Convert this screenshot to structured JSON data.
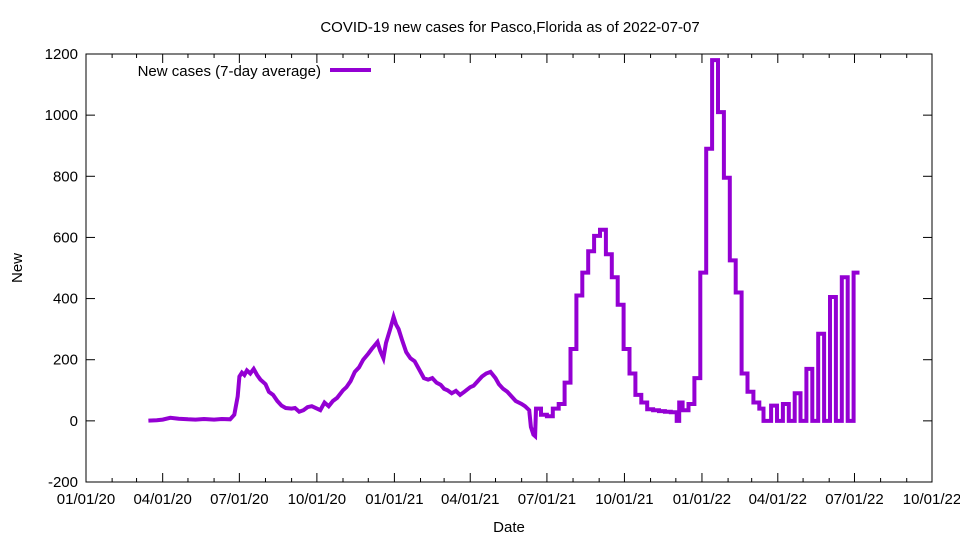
{
  "chart_data": {
    "type": "line",
    "title": "COVID-19 new cases for Pasco,Florida as of 2022-07-07",
    "xlabel": "Date",
    "ylabel": "New",
    "ylim": [
      -200,
      1200
    ],
    "yticks": [
      -200,
      0,
      200,
      400,
      600,
      800,
      1000,
      1200
    ],
    "xlim": [
      "2020-01-01",
      "2022-10-01"
    ],
    "xticks": [
      {
        "date": "2020-01-01",
        "label": "01/01/20"
      },
      {
        "date": "2020-04-01",
        "label": "04/01/20"
      },
      {
        "date": "2020-07-01",
        "label": "07/01/20"
      },
      {
        "date": "2020-10-01",
        "label": "10/01/20"
      },
      {
        "date": "2021-01-01",
        "label": "01/01/21"
      },
      {
        "date": "2021-04-01",
        "label": "04/01/21"
      },
      {
        "date": "2021-07-01",
        "label": "07/01/21"
      },
      {
        "date": "2021-10-01",
        "label": "10/01/21"
      },
      {
        "date": "2022-01-01",
        "label": "01/01/22"
      },
      {
        "date": "2022-04-01",
        "label": "04/01/22"
      },
      {
        "date": "2022-07-01",
        "label": "07/01/22"
      },
      {
        "date": "2022-10-01",
        "label": "10/01/22"
      }
    ],
    "grid": false,
    "legend_position": "top-left",
    "series": [
      {
        "name": "New cases (7-day average)",
        "color": "#9400d3",
        "points": [
          [
            "2020-03-15",
            1
          ],
          [
            "2020-03-25",
            2
          ],
          [
            "2020-04-01",
            4
          ],
          [
            "2020-04-10",
            10
          ],
          [
            "2020-04-20",
            7
          ],
          [
            "2020-05-01",
            5
          ],
          [
            "2020-05-10",
            4
          ],
          [
            "2020-05-20",
            6
          ],
          [
            "2020-06-01",
            4
          ],
          [
            "2020-06-10",
            6
          ],
          [
            "2020-06-20",
            5
          ],
          [
            "2020-06-25",
            20
          ],
          [
            "2020-06-29",
            80
          ],
          [
            "2020-07-01",
            145
          ],
          [
            "2020-07-04",
            158
          ],
          [
            "2020-07-07",
            150
          ],
          [
            "2020-07-10",
            165
          ],
          [
            "2020-07-14",
            155
          ],
          [
            "2020-07-18",
            170
          ],
          [
            "2020-07-22",
            150
          ],
          [
            "2020-07-26",
            135
          ],
          [
            "2020-08-01",
            120
          ],
          [
            "2020-08-05",
            95
          ],
          [
            "2020-08-10",
            85
          ],
          [
            "2020-08-15",
            65
          ],
          [
            "2020-08-20",
            50
          ],
          [
            "2020-08-25",
            42
          ],
          [
            "2020-09-01",
            40
          ],
          [
            "2020-09-05",
            42
          ],
          [
            "2020-09-10",
            30
          ],
          [
            "2020-09-15",
            35
          ],
          [
            "2020-09-20",
            45
          ],
          [
            "2020-09-25",
            48
          ],
          [
            "2020-10-01",
            40
          ],
          [
            "2020-10-05",
            35
          ],
          [
            "2020-10-10",
            60
          ],
          [
            "2020-10-15",
            48
          ],
          [
            "2020-10-20",
            65
          ],
          [
            "2020-10-25",
            75
          ],
          [
            "2020-11-01",
            100
          ],
          [
            "2020-11-05",
            110
          ],
          [
            "2020-11-10",
            130
          ],
          [
            "2020-11-15",
            160
          ],
          [
            "2020-11-20",
            175
          ],
          [
            "2020-11-25",
            200
          ],
          [
            "2020-12-01",
            220
          ],
          [
            "2020-12-05",
            235
          ],
          [
            "2020-12-08",
            245
          ],
          [
            "2020-12-12",
            258
          ],
          [
            "2020-12-15",
            230
          ],
          [
            "2020-12-19",
            205
          ],
          [
            "2020-12-22",
            255
          ],
          [
            "2020-12-27",
            300
          ],
          [
            "2020-12-31",
            340
          ],
          [
            "2021-01-03",
            315
          ],
          [
            "2021-01-06",
            300
          ],
          [
            "2021-01-10",
            265
          ],
          [
            "2021-01-15",
            225
          ],
          [
            "2021-01-20",
            205
          ],
          [
            "2021-01-25",
            195
          ],
          [
            "2021-02-01",
            160
          ],
          [
            "2021-02-05",
            140
          ],
          [
            "2021-02-10",
            135
          ],
          [
            "2021-02-15",
            140
          ],
          [
            "2021-02-20",
            125
          ],
          [
            "2021-02-25",
            118
          ],
          [
            "2021-03-01",
            105
          ],
          [
            "2021-03-05",
            100
          ],
          [
            "2021-03-10",
            90
          ],
          [
            "2021-03-15",
            98
          ],
          [
            "2021-03-20",
            85
          ],
          [
            "2021-03-25",
            95
          ],
          [
            "2021-04-01",
            110
          ],
          [
            "2021-04-05",
            115
          ],
          [
            "2021-04-10",
            130
          ],
          [
            "2021-04-15",
            145
          ],
          [
            "2021-04-20",
            155
          ],
          [
            "2021-04-25",
            160
          ],
          [
            "2021-05-01",
            140
          ],
          [
            "2021-05-05",
            120
          ],
          [
            "2021-05-10",
            105
          ],
          [
            "2021-05-15",
            95
          ],
          [
            "2021-05-20",
            80
          ],
          [
            "2021-05-25",
            65
          ],
          [
            "2021-06-01",
            55
          ],
          [
            "2021-06-05",
            48
          ],
          [
            "2021-06-10",
            35
          ],
          [
            "2021-06-12",
            -20
          ],
          [
            "2021-06-15",
            -45
          ],
          [
            "2021-06-17",
            -50
          ],
          [
            "2021-06-18",
            40
          ],
          [
            "2021-06-24",
            40
          ],
          [
            "2021-06-24",
            20
          ],
          [
            "2021-07-01",
            20
          ],
          [
            "2021-07-01",
            15
          ],
          [
            "2021-07-08",
            15
          ],
          [
            "2021-07-08",
            40
          ],
          [
            "2021-07-15",
            40
          ],
          [
            "2021-07-15",
            55
          ],
          [
            "2021-07-22",
            55
          ],
          [
            "2021-07-22",
            125
          ],
          [
            "2021-07-29",
            125
          ],
          [
            "2021-07-29",
            235
          ],
          [
            "2021-08-05",
            235
          ],
          [
            "2021-08-05",
            410
          ],
          [
            "2021-08-12",
            410
          ],
          [
            "2021-08-12",
            485
          ],
          [
            "2021-08-19",
            485
          ],
          [
            "2021-08-19",
            555
          ],
          [
            "2021-08-26",
            555
          ],
          [
            "2021-08-26",
            605
          ],
          [
            "2021-09-02",
            605
          ],
          [
            "2021-09-02",
            625
          ],
          [
            "2021-09-09",
            625
          ],
          [
            "2021-09-09",
            545
          ],
          [
            "2021-09-16",
            545
          ],
          [
            "2021-09-16",
            470
          ],
          [
            "2021-09-23",
            470
          ],
          [
            "2021-09-23",
            380
          ],
          [
            "2021-09-30",
            380
          ],
          [
            "2021-09-30",
            235
          ],
          [
            "2021-10-07",
            235
          ],
          [
            "2021-10-07",
            155
          ],
          [
            "2021-10-14",
            155
          ],
          [
            "2021-10-14",
            85
          ],
          [
            "2021-10-21",
            85
          ],
          [
            "2021-10-21",
            60
          ],
          [
            "2021-10-28",
            60
          ],
          [
            "2021-10-28",
            38
          ],
          [
            "2021-11-04",
            38
          ],
          [
            "2021-11-04",
            35
          ],
          [
            "2021-11-11",
            35
          ],
          [
            "2021-11-11",
            32
          ],
          [
            "2021-11-18",
            32
          ],
          [
            "2021-11-18",
            30
          ],
          [
            "2021-11-25",
            30
          ],
          [
            "2021-11-25",
            28
          ],
          [
            "2021-12-02",
            28
          ],
          [
            "2021-12-02",
            0
          ],
          [
            "2021-12-05",
            0
          ],
          [
            "2021-12-05",
            60
          ],
          [
            "2021-12-09",
            60
          ],
          [
            "2021-12-09",
            35
          ],
          [
            "2021-12-16",
            35
          ],
          [
            "2021-12-16",
            55
          ],
          [
            "2021-12-23",
            55
          ],
          [
            "2021-12-23",
            140
          ],
          [
            "2021-12-30",
            140
          ],
          [
            "2021-12-30",
            485
          ],
          [
            "2022-01-06",
            485
          ],
          [
            "2022-01-06",
            890
          ],
          [
            "2022-01-13",
            890
          ],
          [
            "2022-01-13",
            1180
          ],
          [
            "2022-01-20",
            1180
          ],
          [
            "2022-01-20",
            1010
          ],
          [
            "2022-01-27",
            1010
          ],
          [
            "2022-01-27",
            795
          ],
          [
            "2022-02-03",
            795
          ],
          [
            "2022-02-03",
            525
          ],
          [
            "2022-02-10",
            525
          ],
          [
            "2022-02-10",
            420
          ],
          [
            "2022-02-17",
            420
          ],
          [
            "2022-02-17",
            155
          ],
          [
            "2022-02-24",
            155
          ],
          [
            "2022-02-24",
            95
          ],
          [
            "2022-03-03",
            95
          ],
          [
            "2022-03-03",
            60
          ],
          [
            "2022-03-10",
            60
          ],
          [
            "2022-03-10",
            40
          ],
          [
            "2022-03-15",
            40
          ],
          [
            "2022-03-15",
            0
          ],
          [
            "2022-03-24",
            0
          ],
          [
            "2022-03-24",
            50
          ],
          [
            "2022-03-31",
            50
          ],
          [
            "2022-03-31",
            0
          ],
          [
            "2022-04-07",
            0
          ],
          [
            "2022-04-07",
            55
          ],
          [
            "2022-04-14",
            55
          ],
          [
            "2022-04-14",
            0
          ],
          [
            "2022-04-21",
            0
          ],
          [
            "2022-04-21",
            90
          ],
          [
            "2022-04-28",
            90
          ],
          [
            "2022-04-28",
            0
          ],
          [
            "2022-05-05",
            0
          ],
          [
            "2022-05-05",
            170
          ],
          [
            "2022-05-12",
            170
          ],
          [
            "2022-05-12",
            0
          ],
          [
            "2022-05-19",
            0
          ],
          [
            "2022-05-19",
            285
          ],
          [
            "2022-05-26",
            285
          ],
          [
            "2022-05-26",
            0
          ],
          [
            "2022-06-02",
            0
          ],
          [
            "2022-06-02",
            405
          ],
          [
            "2022-06-09",
            405
          ],
          [
            "2022-06-09",
            0
          ],
          [
            "2022-06-16",
            0
          ],
          [
            "2022-06-16",
            470
          ],
          [
            "2022-06-23",
            470
          ],
          [
            "2022-06-23",
            0
          ],
          [
            "2022-06-30",
            0
          ],
          [
            "2022-06-30",
            485
          ],
          [
            "2022-07-07",
            485
          ]
        ]
      }
    ]
  }
}
